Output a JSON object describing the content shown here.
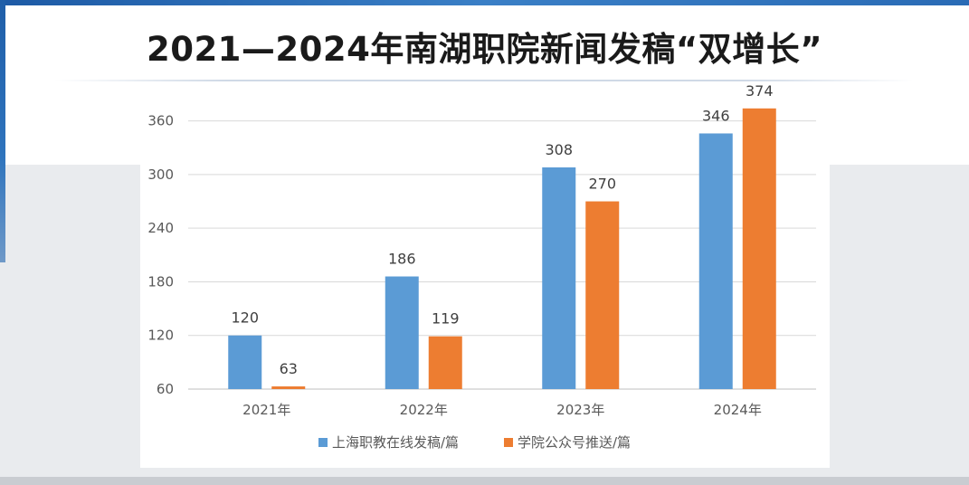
{
  "title": "2021—2024年南湖职院新闻发稿“双增长”",
  "colors": {
    "series1": "#5b9bd5",
    "series2": "#ed7d31",
    "title": "#1a1a1a",
    "accent": "#2a6bb5"
  },
  "chart_data": {
    "type": "bar",
    "categories": [
      "2021年",
      "2022年",
      "2023年",
      "2024年"
    ],
    "series": [
      {
        "name": "上海职教在线发稿/篇",
        "values": [
          120,
          186,
          308,
          346
        ],
        "color": "#5b9bd5"
      },
      {
        "name": "学院公众号推送/篇",
        "values": [
          63,
          119,
          270,
          374
        ],
        "color": "#ed7d31"
      }
    ],
    "yticks": [
      60,
      120,
      180,
      240,
      300,
      360
    ],
    "ylim": [
      60,
      390
    ],
    "grid": true,
    "legend": "bottom",
    "data_labels": true
  }
}
